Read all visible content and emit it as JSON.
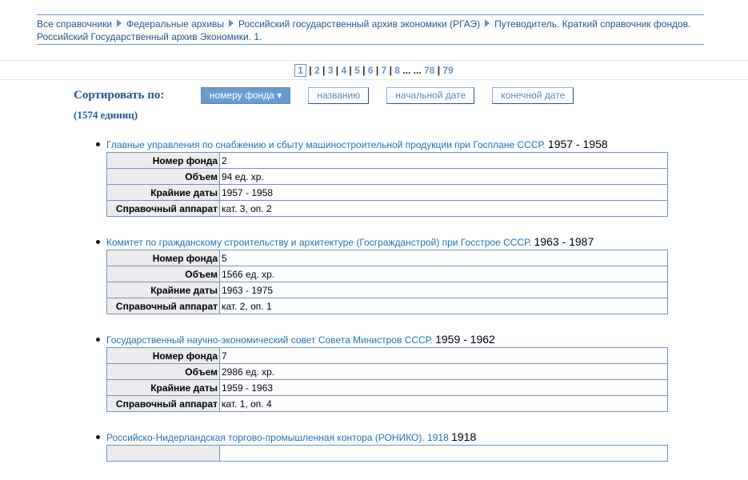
{
  "breadcrumb": [
    "Все справочники",
    "Федеральные архивы",
    "Российский государственный архив экономики (РГАЭ)",
    "Путеводитель. Краткий справочник фондов. Российский Государственный архив Экономики. 1."
  ],
  "pagination": {
    "current": "1",
    "pages": [
      "2",
      "3",
      "4",
      "5",
      "6",
      "7",
      "8"
    ],
    "ellipsis": "... ...",
    "last": [
      "78",
      "79"
    ]
  },
  "sort": {
    "label": "Сортировать по:",
    "count": "(1574 единиц)",
    "options": [
      "номеру фонда",
      "названию",
      "начальной дате",
      "конечной дате"
    ],
    "active": 0
  },
  "labels": [
    "Номер фонда",
    "Объем",
    "Крайние даты",
    "Справочный аппарат"
  ],
  "items": [
    {
      "title": "Главные управления по снабжению и сбыту машиностроительной продукции при Госплане СССР.",
      "years": "1957 - 1958",
      "values": [
        "2",
        "94 ед. хр.",
        "1957 - 1958",
        "кат. 3, оп. 2"
      ]
    },
    {
      "title": "Комитет по гражданскому строительству и архитектуре (Госгражданстрой) при Госстрое СССР.",
      "years": "1963 - 1987",
      "values": [
        "5",
        "1566 ед. хр.",
        "1963 - 1975",
        "кат. 2, оп. 1"
      ]
    },
    {
      "title": "Государственный научно-экономический совет Совета Министров СССР.",
      "years": "1959 - 1962",
      "values": [
        "7",
        "2986 ед. хр.",
        "1959 - 1963",
        "кат. 1, оп. 4"
      ]
    },
    {
      "title": "Российско-Нидерландская торгово-промышленная контора (РОНИКО). 1918",
      "years": "1918",
      "values": []
    }
  ]
}
